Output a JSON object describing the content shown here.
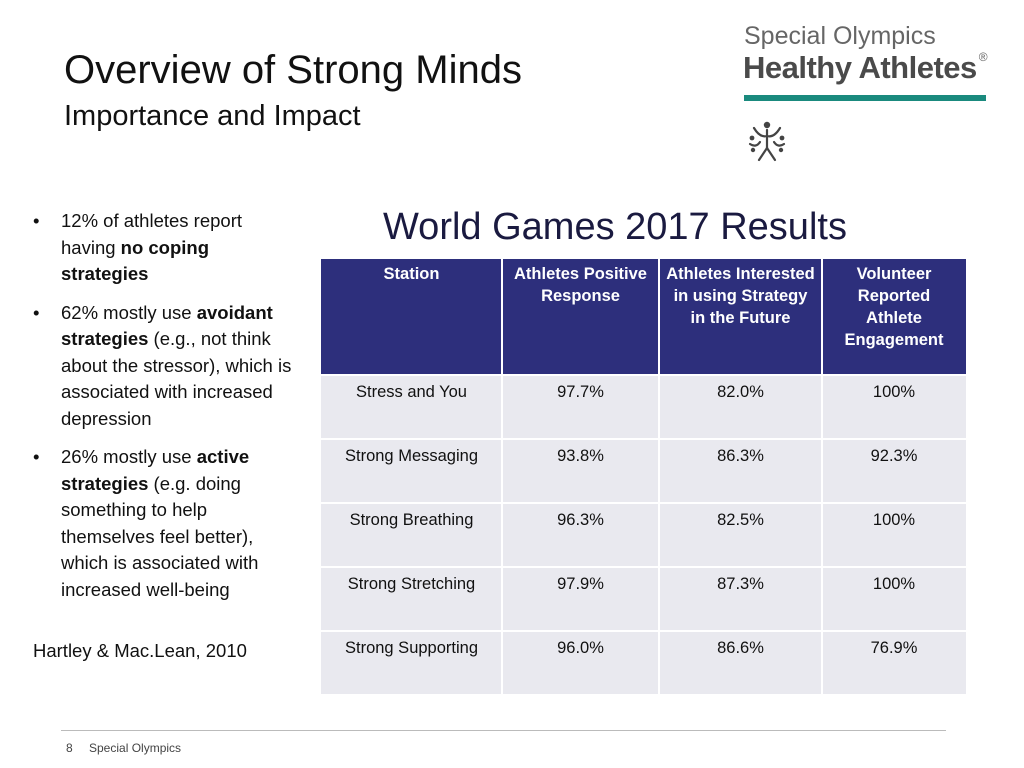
{
  "slide": {
    "title": "Overview of Strong Minds",
    "subtitle": "Importance and Impact"
  },
  "logo": {
    "line1": "Special Olympics",
    "line2": "Healthy Athletes",
    "reg_mark": "®",
    "accent_color": "#1a8a7e"
  },
  "bullets": [
    {
      "dot": "•",
      "before": "12% of athletes report having ",
      "bold": "no coping strategies",
      "after": ""
    },
    {
      "dot": "•",
      "before": "62% mostly use ",
      "bold": "avoidant strategies",
      "after": " (e.g., not think about the stressor), which is associated with increased depression"
    },
    {
      "dot": "•",
      "before": "26% mostly use ",
      "bold": "active strategies",
      "after": " (e.g. doing something to help themselves feel better), which is associated with increased well-being"
    }
  ],
  "citation": "Hartley & Mac.Lean, 2010",
  "results": {
    "title": "World Games 2017 Results",
    "header_color": "#2d2f7c",
    "row_color": "#e9e9ef",
    "headers": [
      "Station",
      "Athletes Positive Response",
      "Athletes Interested in using Strategy in the Future",
      "Volunteer Reported Athlete Engagement"
    ],
    "rows": [
      {
        "station": "Stress and You",
        "positive": "97.7%",
        "interested": "82.0%",
        "engagement": "100%"
      },
      {
        "station": "Strong Messaging",
        "positive": "93.8%",
        "interested": "86.3%",
        "engagement": "92.3%"
      },
      {
        "station": "Strong Breathing",
        "positive": "96.3%",
        "interested": "82.5%",
        "engagement": "100%"
      },
      {
        "station": "Strong Stretching",
        "positive": "97.9%",
        "interested": "87.3%",
        "engagement": "100%"
      },
      {
        "station": "Strong Supporting",
        "positive": "96.0%",
        "interested": "86.6%",
        "engagement": "76.9%"
      }
    ]
  },
  "footer": {
    "page_number": "8",
    "organization": "Special Olympics"
  }
}
